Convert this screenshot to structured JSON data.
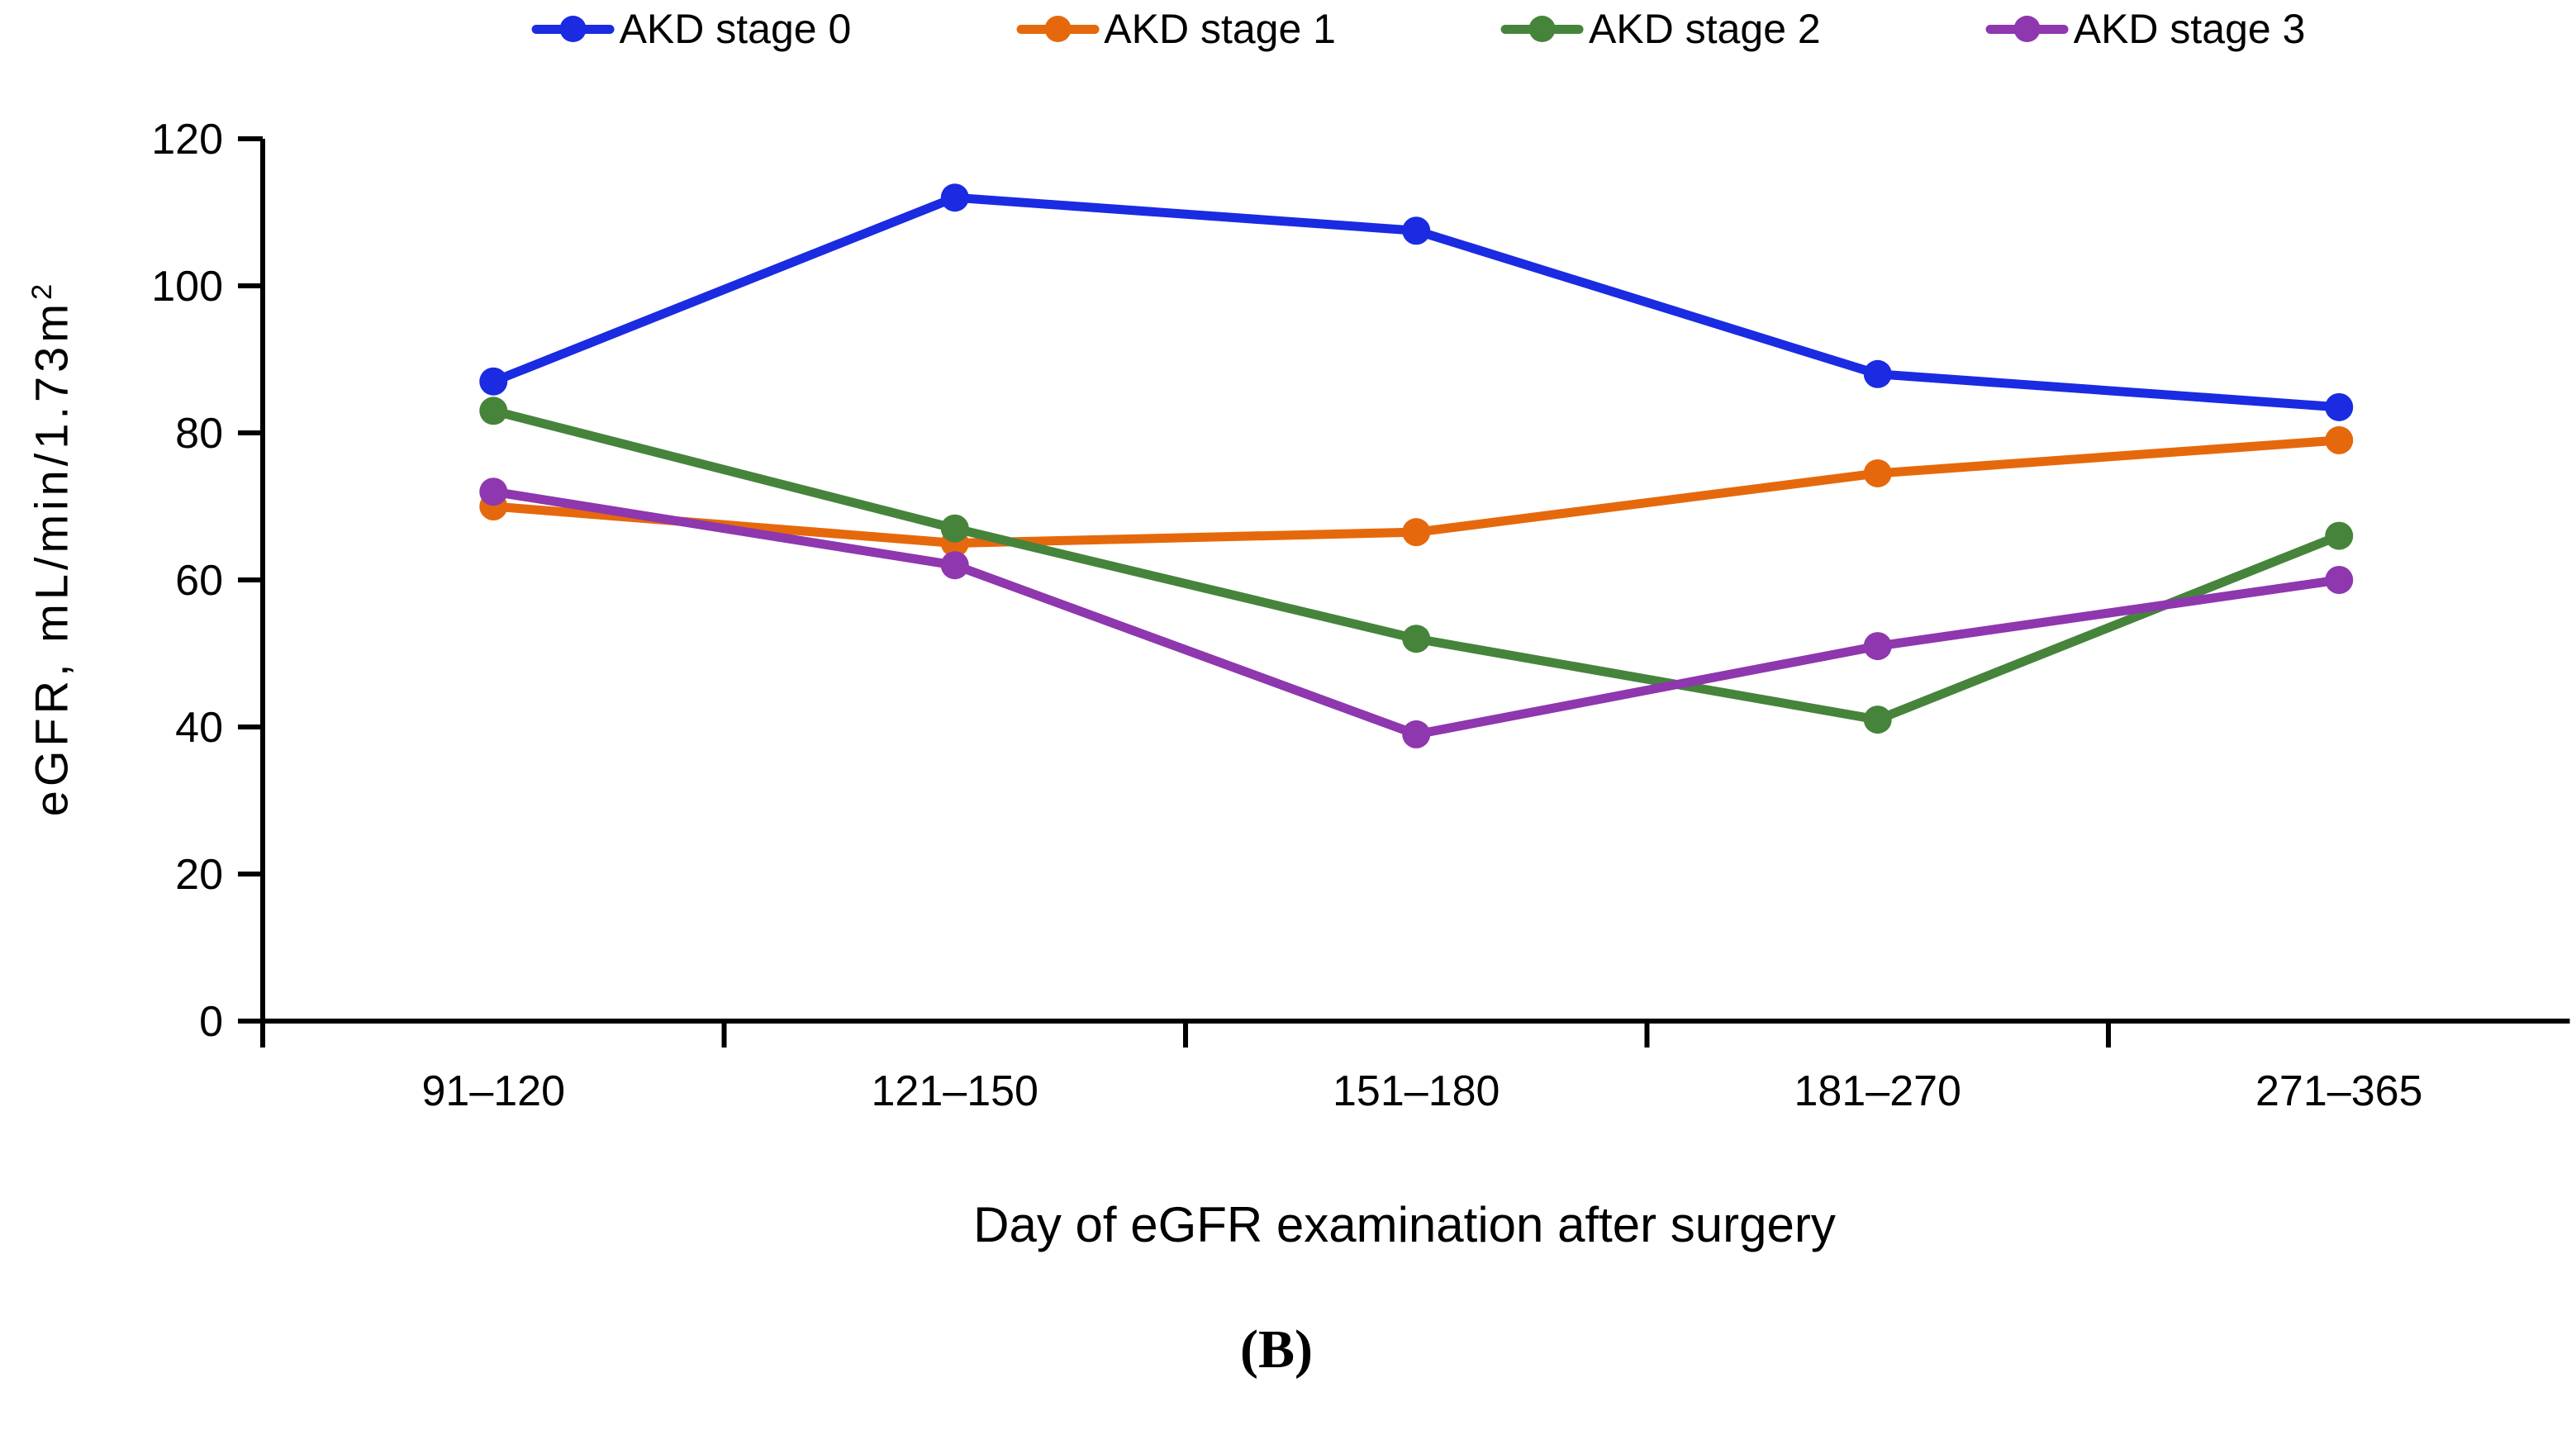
{
  "figure": {
    "caption": "(B)"
  },
  "chart_data": {
    "type": "line",
    "title": "",
    "categories": [
      "91–120",
      "121–150",
      "151–180",
      "181–270",
      "271–365"
    ],
    "series": [
      {
        "name": "AKD stage 0",
        "color": "#1A2BE2",
        "values": [
          87,
          112,
          107.5,
          88,
          83.5
        ]
      },
      {
        "name": "AKD stage 1",
        "color": "#E5690C",
        "values": [
          70,
          65,
          66.5,
          74.5,
          79
        ]
      },
      {
        "name": "AKD stage 2",
        "color": "#46843C",
        "values": [
          83,
          67,
          52,
          41,
          66
        ]
      },
      {
        "name": "AKD stage 3",
        "color": "#8E37AE",
        "values": [
          72,
          62,
          39,
          51,
          60
        ]
      }
    ],
    "xlabel": "Day of eGFR examination after surgery",
    "ylabel": "eGFR, mL/min/1.73m",
    "ylabel_superscript": "2",
    "ylim": [
      0,
      120
    ],
    "yticks": [
      0,
      20,
      40,
      60,
      80,
      100,
      120
    ],
    "legend_position": "top",
    "grid": false
  }
}
